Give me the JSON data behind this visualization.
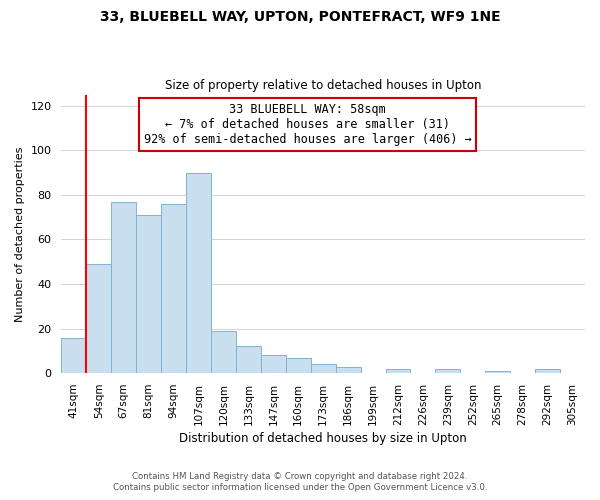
{
  "title1": "33, BLUEBELL WAY, UPTON, PONTEFRACT, WF9 1NE",
  "title2": "Size of property relative to detached houses in Upton",
  "xlabel": "Distribution of detached houses by size in Upton",
  "ylabel": "Number of detached properties",
  "bar_labels": [
    "41sqm",
    "54sqm",
    "67sqm",
    "81sqm",
    "94sqm",
    "107sqm",
    "120sqm",
    "133sqm",
    "147sqm",
    "160sqm",
    "173sqm",
    "186sqm",
    "199sqm",
    "212sqm",
    "226sqm",
    "239sqm",
    "252sqm",
    "265sqm",
    "278sqm",
    "292sqm",
    "305sqm"
  ],
  "bar_values": [
    16,
    49,
    77,
    71,
    76,
    90,
    19,
    12,
    8,
    7,
    4,
    3,
    0,
    2,
    0,
    2,
    0,
    1,
    0,
    2,
    0
  ],
  "bar_color": "#c9dff0",
  "bar_edge_color": "#7fb3d3",
  "ylim": [
    0,
    125
  ],
  "yticks": [
    0,
    20,
    40,
    60,
    80,
    100,
    120
  ],
  "red_line_bar_index": 1,
  "annotation_text1": "33 BLUEBELL WAY: 58sqm",
  "annotation_text2": "← 7% of detached houses are smaller (31)",
  "annotation_text3": "92% of semi-detached houses are larger (406) →",
  "annotation_box_color": "#ffffff",
  "annotation_border_color": "#cc0000",
  "footer1": "Contains HM Land Registry data © Crown copyright and database right 2024.",
  "footer2": "Contains public sector information licensed under the Open Government Licence v3.0."
}
